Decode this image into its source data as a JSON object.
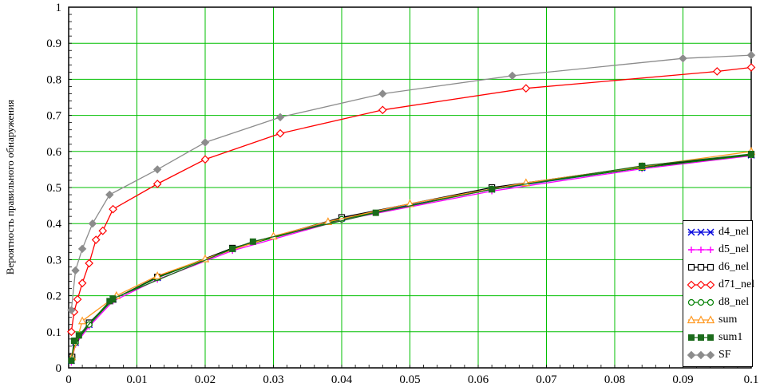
{
  "chart_data": {
    "type": "line",
    "title": "",
    "xlabel": "",
    "ylabel": "Вероятность правильного обнаружения",
    "xlim": [
      0,
      0.1
    ],
    "ylim": [
      0,
      1
    ],
    "grid": true,
    "grid_color": "#00BF00",
    "axis_color": "#000000",
    "background": "#FFFFFF",
    "legend_position": "right-bottom",
    "x_ticks": [
      {
        "v": 0,
        "label": "0"
      },
      {
        "v": 0.01,
        "label": "0.01"
      },
      {
        "v": 0.02,
        "label": "0.02"
      },
      {
        "v": 0.03,
        "label": "0.03"
      },
      {
        "v": 0.04,
        "label": "0.04"
      },
      {
        "v": 0.05,
        "label": "0.05"
      },
      {
        "v": 0.06,
        "label": "0.06"
      },
      {
        "v": 0.07,
        "label": "0.07"
      },
      {
        "v": 0.08,
        "label": "0.08"
      },
      {
        "v": 0.09,
        "label": "0.09"
      },
      {
        "v": 0.1,
        "label": "0.1"
      }
    ],
    "y_ticks": [
      {
        "v": 0,
        "label": "0"
      },
      {
        "v": 0.1,
        "label": "0.1"
      },
      {
        "v": 0.2,
        "label": "0.2"
      },
      {
        "v": 0.3,
        "label": "0.3"
      },
      {
        "v": 0.4,
        "label": "0.4"
      },
      {
        "v": 0.5,
        "label": "0.5"
      },
      {
        "v": 0.6,
        "label": "0.6"
      },
      {
        "v": 0.7,
        "label": "0.7"
      },
      {
        "v": 0.8,
        "label": "0.8"
      },
      {
        "v": 0.9,
        "label": "0.9"
      },
      {
        "v": 1,
        "label": "1"
      }
    ],
    "series": [
      {
        "name": "d4_nel",
        "color": "#0000DD",
        "marker": "x",
        "points": [
          [
            0.0004,
            0.02
          ],
          [
            0.001,
            0.07
          ],
          [
            0.003,
            0.12
          ],
          [
            0.0065,
            0.19
          ],
          [
            0.013,
            0.25
          ],
          [
            0.024,
            0.33
          ],
          [
            0.04,
            0.415
          ],
          [
            0.062,
            0.495
          ],
          [
            0.084,
            0.555
          ],
          [
            0.1,
            0.59
          ]
        ]
      },
      {
        "name": "d5_nel",
        "color": "#FF00FF",
        "marker": "plus",
        "points": [
          [
            0.0004,
            0.015
          ],
          [
            0.001,
            0.065
          ],
          [
            0.003,
            0.115
          ],
          [
            0.0065,
            0.185
          ],
          [
            0.013,
            0.245
          ],
          [
            0.024,
            0.325
          ],
          [
            0.04,
            0.41
          ],
          [
            0.062,
            0.49
          ],
          [
            0.084,
            0.552
          ],
          [
            0.1,
            0.588
          ]
        ]
      },
      {
        "name": "d6_nel",
        "color": "#000000",
        "marker": "square-open",
        "points": [
          [
            0.0005,
            0.03
          ],
          [
            0.001,
            0.075
          ],
          [
            0.003,
            0.125
          ],
          [
            0.0065,
            0.19
          ],
          [
            0.013,
            0.252
          ],
          [
            0.024,
            0.332
          ],
          [
            0.04,
            0.417
          ],
          [
            0.062,
            0.5
          ],
          [
            0.084,
            0.558
          ],
          [
            0.1,
            0.592
          ]
        ]
      },
      {
        "name": "d71_nel",
        "color": "#FF0000",
        "marker": "diamond-open",
        "points": [
          [
            0.0004,
            0.1
          ],
          [
            0.0008,
            0.155
          ],
          [
            0.0013,
            0.19
          ],
          [
            0.002,
            0.235
          ],
          [
            0.003,
            0.29
          ],
          [
            0.004,
            0.355
          ],
          [
            0.005,
            0.38
          ],
          [
            0.0065,
            0.44
          ],
          [
            0.013,
            0.51
          ],
          [
            0.02,
            0.578
          ],
          [
            0.031,
            0.65
          ],
          [
            0.046,
            0.715
          ],
          [
            0.067,
            0.775
          ],
          [
            0.095,
            0.822
          ],
          [
            0.1,
            0.833
          ]
        ]
      },
      {
        "name": "d8_nel",
        "color": "#008000",
        "marker": "circle-open",
        "points": [
          [
            0.0005,
            0.025
          ],
          [
            0.001,
            0.07
          ],
          [
            0.003,
            0.12
          ],
          [
            0.0065,
            0.19
          ],
          [
            0.013,
            0.25
          ],
          [
            0.024,
            0.33
          ],
          [
            0.04,
            0.412
          ],
          [
            0.062,
            0.496
          ],
          [
            0.084,
            0.555
          ],
          [
            0.1,
            0.59
          ]
        ]
      },
      {
        "name": "sum",
        "color": "#FF9922",
        "marker": "triangle-open",
        "points": [
          [
            0.0005,
            0.03
          ],
          [
            0.002,
            0.13
          ],
          [
            0.007,
            0.2
          ],
          [
            0.013,
            0.255
          ],
          [
            0.02,
            0.302
          ],
          [
            0.03,
            0.365
          ],
          [
            0.038,
            0.405
          ],
          [
            0.05,
            0.455
          ],
          [
            0.067,
            0.513
          ],
          [
            0.084,
            0.558
          ],
          [
            0.1,
            0.6
          ]
        ]
      },
      {
        "name": "sum1",
        "color": "#1B6B1B",
        "marker": "square-filled",
        "points": [
          [
            0.0004,
            0.02
          ],
          [
            0.0008,
            0.075
          ],
          [
            0.0015,
            0.09
          ],
          [
            0.006,
            0.185
          ],
          [
            0.0065,
            0.192
          ],
          [
            0.024,
            0.33
          ],
          [
            0.027,
            0.35
          ],
          [
            0.045,
            0.43
          ],
          [
            0.062,
            0.495
          ],
          [
            0.084,
            0.56
          ],
          [
            0.1,
            0.593
          ]
        ]
      },
      {
        "name": "SF",
        "color": "#8C8C8C",
        "marker": "diamond-filled",
        "points": [
          [
            0.0004,
            0.16
          ],
          [
            0.001,
            0.27
          ],
          [
            0.002,
            0.33
          ],
          [
            0.0035,
            0.4
          ],
          [
            0.006,
            0.48
          ],
          [
            0.013,
            0.55
          ],
          [
            0.02,
            0.625
          ],
          [
            0.031,
            0.695
          ],
          [
            0.046,
            0.76
          ],
          [
            0.065,
            0.81
          ],
          [
            0.09,
            0.858
          ],
          [
            0.1,
            0.867
          ]
        ]
      }
    ]
  }
}
